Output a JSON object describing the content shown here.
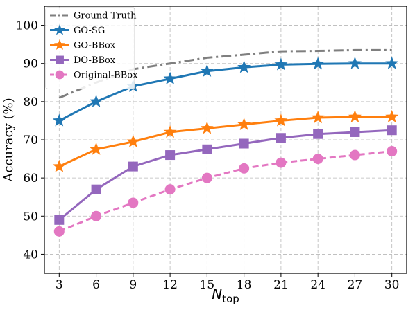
{
  "chart_data": {
    "type": "line",
    "title": "",
    "xlabel": "N",
    "xlabel_subscript": "top",
    "ylabel": "Accuracy (%)",
    "x": [
      3,
      6,
      9,
      12,
      15,
      18,
      21,
      24,
      27,
      30
    ],
    "x_tick_labels": [
      "3",
      "6",
      "9",
      "12",
      "15",
      "18",
      "21",
      "24",
      "27",
      "30"
    ],
    "y_tick_labels": [
      "40",
      "50",
      "60",
      "70",
      "80",
      "90",
      "100"
    ],
    "y_ticks": [
      40,
      50,
      60,
      70,
      80,
      90,
      100
    ],
    "xlim": [
      1.8,
      31.2
    ],
    "ylim": [
      35,
      105
    ],
    "grid": true,
    "legend_position": "top-left",
    "series": [
      {
        "name": "Ground Truth",
        "color": "#7f7f7f",
        "marker": "none",
        "linestyle": "dashdot",
        "values": [
          81,
          85,
          88.5,
          90,
          91.5,
          92.3,
          93.2,
          93.3,
          93.5,
          93.5
        ]
      },
      {
        "name": "GO-SG",
        "color": "#1f77b4",
        "marker": "star",
        "linestyle": "solid",
        "values": [
          75,
          80,
          84,
          86,
          88,
          89,
          89.7,
          89.9,
          90,
          90
        ]
      },
      {
        "name": "GO-BBox",
        "color": "#ff7f0e",
        "marker": "star",
        "linestyle": "solid",
        "values": [
          63,
          67.5,
          69.5,
          72,
          73,
          74,
          75,
          75.8,
          76,
          76
        ]
      },
      {
        "name": "DO-BBox",
        "color": "#9467bd",
        "marker": "square",
        "linestyle": "solid",
        "values": [
          49,
          57,
          63,
          66,
          67.5,
          69,
          70.5,
          71.5,
          72,
          72.5
        ]
      },
      {
        "name": "Original-BBox",
        "color": "#e377c2",
        "marker": "circle",
        "linestyle": "dashed",
        "values": [
          46,
          50,
          53.5,
          57,
          60,
          62.5,
          64,
          65,
          66,
          67
        ]
      }
    ]
  }
}
